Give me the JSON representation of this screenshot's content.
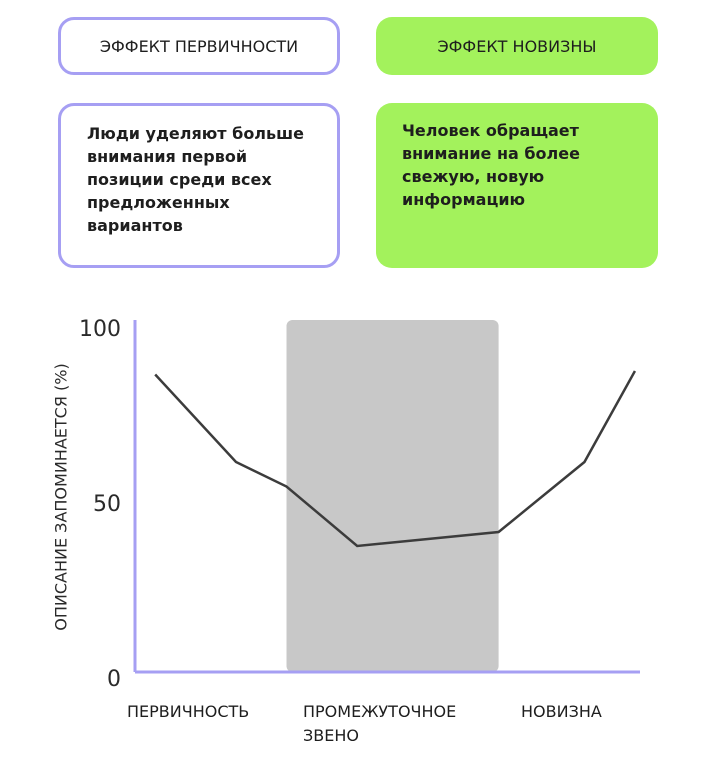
{
  "cards": [
    {
      "title": "ЭФФЕКТ ПЕРВИЧНОСТИ",
      "text": "Люди уделяют больше внимания первой позиции среди всех предложенных вариантов"
    },
    {
      "title": "ЭФФЕКТ НОВИЗНЫ",
      "text": "Человек обращает внимание на более свежую, новую информацию"
    }
  ],
  "chart_data": {
    "type": "line",
    "ylabel": "ОПИСАНИЕ ЗАПОМИНАЕТСЯ (%)",
    "categories": [
      "ПЕРВИЧНОСТЬ",
      "ПРОМЕЖУТОЧНОЕ ЗВЕНО",
      "НОВИЗНА"
    ],
    "x": [
      4,
      20,
      30,
      44,
      72,
      89,
      99
    ],
    "values": [
      85,
      60,
      53,
      36,
      40,
      60,
      86
    ],
    "xlim": [
      0,
      100
    ],
    "ylim": [
      0,
      100
    ],
    "yticks": [
      0,
      50,
      100
    ],
    "color": "#3c3c3c",
    "highlight": [
      30,
      72
    ],
    "highlight_color": "#c8c8c8"
  }
}
